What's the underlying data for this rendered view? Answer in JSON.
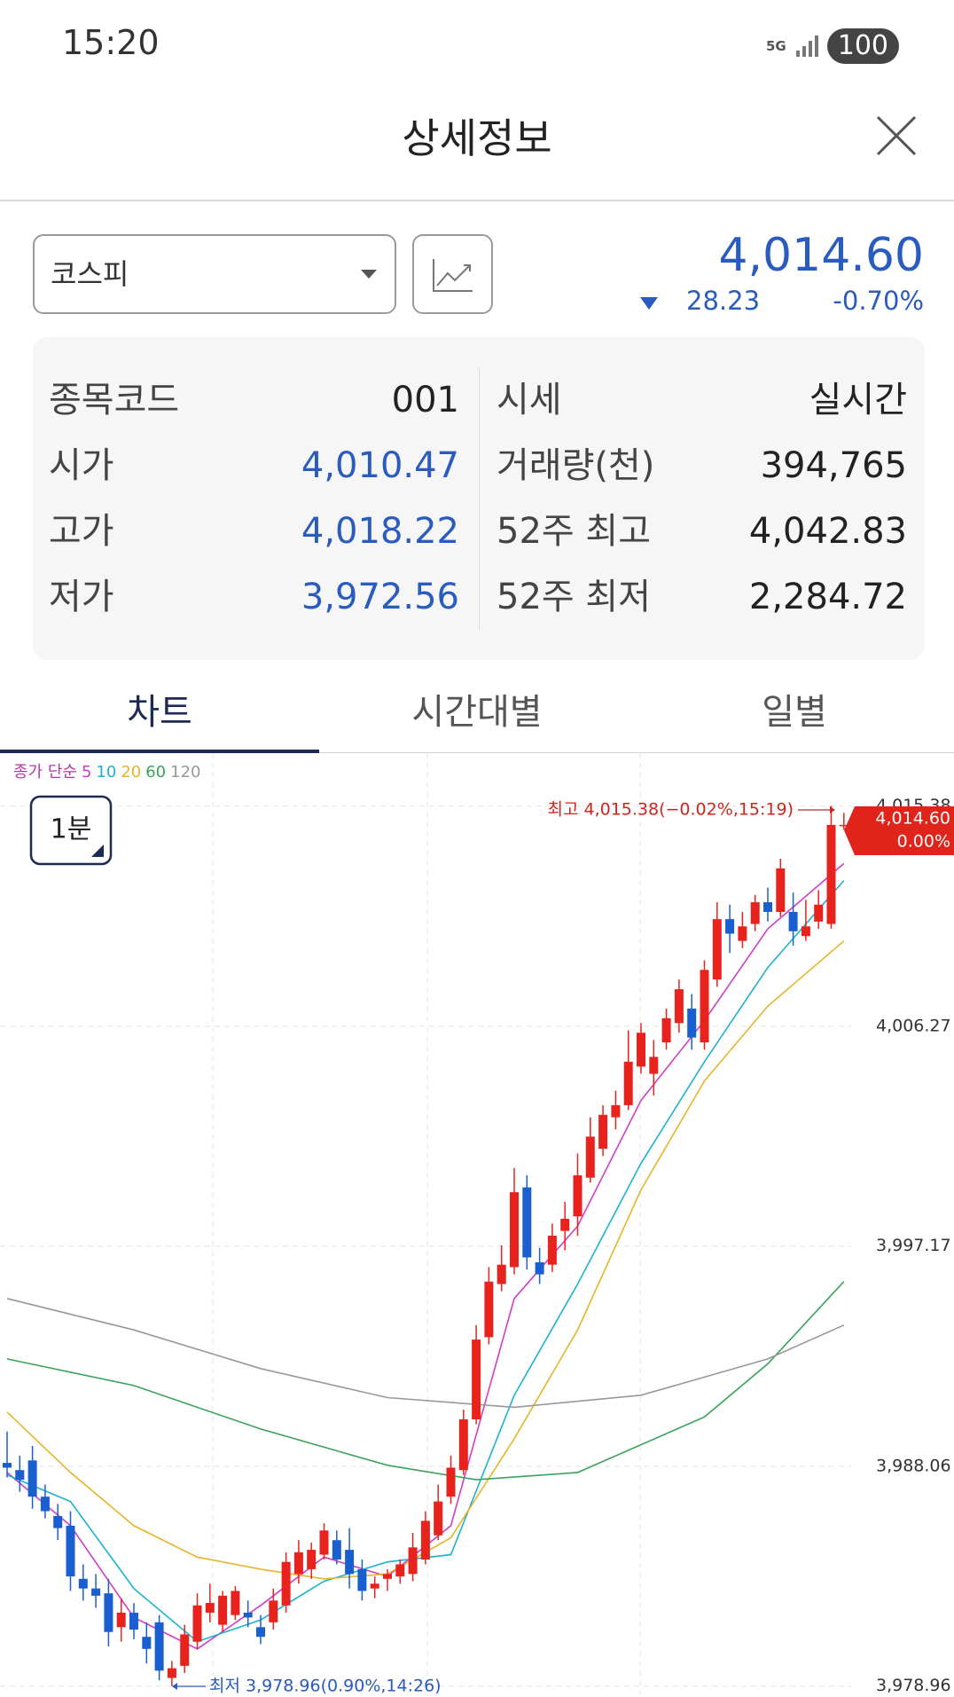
{
  "status_bar": {
    "time": "15:20",
    "network": "5G",
    "battery": "100"
  },
  "header": {
    "title": "상세정보"
  },
  "index": {
    "name": "코스피",
    "price": "4,014.60",
    "change": "28.23",
    "change_rate": "-0.70%"
  },
  "info": {
    "rows": [
      [
        "종목코드",
        "001",
        "시세",
        "실시간"
      ],
      [
        "시가",
        "4,010.47",
        "거래량(천)",
        "394,765"
      ],
      [
        "고가",
        "4,018.22",
        "52주 최고",
        "4,042.83"
      ],
      [
        "저가",
        "3,972.56",
        "52주 최저",
        "2,284.72"
      ]
    ]
  },
  "tabs": [
    "차트",
    "시간대별",
    "일별"
  ],
  "chart_data": {
    "type": "candlestick",
    "interval": "1분",
    "legend_title": "종가 단순",
    "up_color": "#e8221c",
    "down_color": "#1a5fd0",
    "grid": true,
    "ylim": [
      3978.51,
      4017.57
    ],
    "yticks": [
      {
        "value": 3978.96,
        "label": "3,978.96"
      },
      {
        "value": 3988.06,
        "label": "3,988.06"
      },
      {
        "value": 3997.17,
        "label": "3,997.17"
      },
      {
        "value": 4006.27,
        "label": "4,006.27"
      },
      {
        "value": 4015.38,
        "label": "4,015.38"
      }
    ],
    "candles": [
      [
        3988.2,
        3989.5,
        3987.6,
        3988.0
      ],
      [
        3987.9,
        3988.5,
        3987.0,
        3987.5
      ],
      [
        3988.3,
        3988.9,
        3986.3,
        3986.8
      ],
      [
        3986.8,
        3987.3,
        3985.9,
        3986.2
      ],
      [
        3986.0,
        3986.5,
        3985.0,
        3985.5
      ],
      [
        3985.6,
        3986.2,
        3982.9,
        3983.5
      ],
      [
        3983.4,
        3984.0,
        3982.5,
        3983.0
      ],
      [
        3983.0,
        3983.6,
        3982.2,
        3982.7
      ],
      [
        3982.8,
        3983.4,
        3980.6,
        3981.2
      ],
      [
        3981.4,
        3982.6,
        3980.8,
        3982.0
      ],
      [
        3982.0,
        3982.4,
        3980.9,
        3981.3
      ],
      [
        3981.0,
        3981.6,
        3979.9,
        3980.5
      ],
      [
        3981.6,
        3981.9,
        3979.2,
        3979.6
      ],
      [
        3979.3,
        3980.0,
        3978.96,
        3979.7
      ],
      [
        3979.8,
        3981.5,
        3979.5,
        3981.1
      ],
      [
        3980.8,
        3982.8,
        3980.5,
        3982.3
      ],
      [
        3982.0,
        3983.2,
        3981.6,
        3982.4
      ],
      [
        3981.5,
        3982.9,
        3981.2,
        3982.7
      ],
      [
        3981.9,
        3983.1,
        3981.7,
        3982.9
      ],
      [
        3982.0,
        3982.5,
        3981.4,
        3981.8
      ],
      [
        3981.4,
        3981.9,
        3980.7,
        3981.0
      ],
      [
        3981.6,
        3983.0,
        3981.3,
        3982.5
      ],
      [
        3982.3,
        3984.5,
        3982.0,
        3984.1
      ],
      [
        3983.6,
        3985.0,
        3983.2,
        3984.5
      ],
      [
        3983.8,
        3984.9,
        3983.4,
        3984.6
      ],
      [
        3984.4,
        3985.7,
        3984.2,
        3985.4
      ],
      [
        3985.0,
        3985.4,
        3984.0,
        3984.2
      ],
      [
        3984.6,
        3985.5,
        3983.0,
        3983.6
      ],
      [
        3983.8,
        3984.2,
        3982.5,
        3982.9
      ],
      [
        3983.0,
        3983.5,
        3982.6,
        3983.2
      ],
      [
        3983.4,
        3983.8,
        3982.9,
        3983.6
      ],
      [
        3983.5,
        3984.2,
        3983.2,
        3984.0
      ],
      [
        3983.6,
        3985.3,
        3983.3,
        3984.7
      ],
      [
        3984.2,
        3986.2,
        3984.0,
        3985.8
      ],
      [
        3985.2,
        3987.3,
        3985.0,
        3986.6
      ],
      [
        3986.8,
        3988.5,
        3986.5,
        3988.0
      ],
      [
        3987.9,
        3990.4,
        3987.7,
        3990.0
      ],
      [
        3990.0,
        3993.9,
        3989.8,
        3993.3
      ],
      [
        3993.4,
        3996.3,
        3993.1,
        3995.7
      ],
      [
        3995.6,
        3997.2,
        3995.3,
        3996.4
      ],
      [
        3996.3,
        4000.4,
        3996.0,
        3999.4
      ],
      [
        3999.6,
        4000.1,
        3996.2,
        3996.7
      ],
      [
        3996.5,
        3997.1,
        3995.6,
        3996.0
      ],
      [
        3996.4,
        3998.1,
        3996.1,
        3997.6
      ],
      [
        3997.8,
        3999.0,
        3997.0,
        3998.3
      ],
      [
        3998.4,
        4001.0,
        3997.6,
        4000.1
      ],
      [
        4000.0,
        4002.5,
        3999.8,
        4001.7
      ],
      [
        4001.2,
        4003.0,
        4000.9,
        4002.6
      ],
      [
        4002.5,
        4003.6,
        4002.0,
        4003.0
      ],
      [
        4003.0,
        4006.1,
        4002.8,
        4004.8
      ],
      [
        4004.6,
        4006.4,
        4004.3,
        4006.0
      ],
      [
        4004.3,
        4005.7,
        4003.4,
        4005.0
      ],
      [
        4005.6,
        4007.0,
        4005.3,
        4006.6
      ],
      [
        4006.4,
        4008.2,
        4006.0,
        4007.8
      ],
      [
        4007.0,
        4007.6,
        4005.3,
        4005.8
      ],
      [
        4005.6,
        4009.0,
        4005.3,
        4008.6
      ],
      [
        4008.2,
        4011.4,
        4007.9,
        4010.7
      ],
      [
        4010.7,
        4011.3,
        4009.3,
        4010.1
      ],
      [
        4009.8,
        4011.0,
        4009.5,
        4010.4
      ],
      [
        4010.5,
        4011.7,
        4010.2,
        4011.4
      ],
      [
        4011.4,
        4012.0,
        4010.6,
        4011.0
      ],
      [
        4011.0,
        4013.2,
        4010.8,
        4012.8
      ],
      [
        4011.0,
        4011.8,
        4009.6,
        4010.2
      ],
      [
        4010.0,
        4011.5,
        4009.8,
        4010.4
      ],
      [
        4010.6,
        4011.9,
        4010.3,
        4011.3
      ],
      [
        4010.5,
        4015.38,
        4010.3,
        4014.6
      ],
      [
        4014.6,
        4015.1,
        4014.4,
        4014.6
      ]
    ],
    "series": [
      {
        "name": "5",
        "color": "#d23cc8",
        "x": [
          0,
          5,
          10,
          15,
          20,
          25,
          30,
          35,
          40,
          45,
          50,
          55,
          60,
          66
        ],
        "values": [
          3987.8,
          3985.6,
          3981.8,
          3980.5,
          3982.3,
          3984.3,
          3983.5,
          3985.6,
          3995.0,
          3998.0,
          4003.2,
          4006.5,
          4010.3,
          4013.0
        ]
      },
      {
        "name": "10",
        "color": "#1ab3cf",
        "x": [
          0,
          5,
          10,
          15,
          20,
          25,
          30,
          35,
          40,
          45,
          50,
          55,
          60,
          66
        ],
        "values": [
          3987.7,
          3986.6,
          3983.0,
          3980.8,
          3981.7,
          3983.3,
          3984.1,
          3984.4,
          3991.0,
          3995.6,
          4000.6,
          4004.8,
          4008.7,
          4012.3
        ]
      },
      {
        "name": "20",
        "color": "#e5b52a",
        "x": [
          0,
          5,
          10,
          15,
          20,
          25,
          30,
          35,
          40,
          45,
          50,
          55,
          60,
          66
        ],
        "values": [
          3990.3,
          3987.8,
          3985.6,
          3984.3,
          3983.8,
          3983.4,
          3983.6,
          3985.1,
          3989.2,
          3993.7,
          3999.5,
          4004.0,
          4007.1,
          4009.8
        ]
      },
      {
        "name": "60",
        "color": "#3aa35a",
        "x": [
          0,
          10,
          20,
          30,
          37,
          45,
          55,
          60,
          66
        ],
        "values": [
          3992.5,
          3991.4,
          3989.6,
          3988.1,
          3987.5,
          3987.8,
          3990.1,
          3992.3,
          3995.7
        ]
      },
      {
        "name": "120",
        "color": "#999999",
        "x": [
          0,
          10,
          20,
          30,
          40,
          50,
          60,
          66
        ],
        "values": [
          3995.0,
          3993.7,
          3992.1,
          3990.9,
          3990.5,
          3991.0,
          3992.5,
          3993.9
        ]
      }
    ],
    "high_label": "최고 4,015.38(−0.02%,15:19)",
    "low_label": "최저 3,978.96(0.90%,14:26)",
    "last_price": "4,014.60",
    "last_rate": "0.00%"
  }
}
